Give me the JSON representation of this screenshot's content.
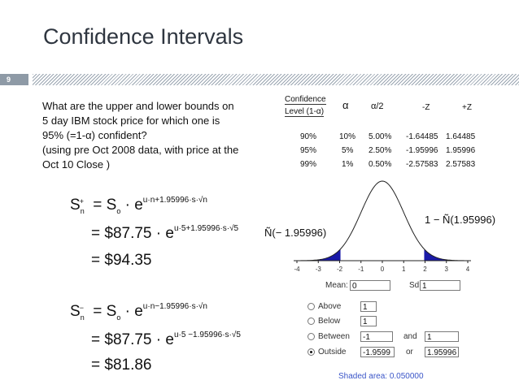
{
  "slide": {
    "title": "Confidence Intervals",
    "page_number": "9"
  },
  "question": {
    "lines": [
      "What are the upper and lower bounds on",
      "5 day IBM stock price for which one is",
      "95% (=1-α) confident?",
      "(using pre Oct 2008 data, with price at the",
      "Oct 10 Close )"
    ]
  },
  "table": {
    "header": {
      "level_line1": "Confidence",
      "level_line2": "Level (1-α)",
      "alpha": "α",
      "alpha_half": "α/2",
      "neg_z": "-Z",
      "pos_z": "+Z"
    },
    "rows": [
      [
        "90%",
        "10%",
        "5.00%",
        "-1.64485",
        "1.64485"
      ],
      [
        "95%",
        "5%",
        "2.50%",
        "-1.95996",
        "1.95996"
      ],
      [
        "99%",
        "1%",
        "0.50%",
        "-2.57583",
        "2.57583"
      ]
    ]
  },
  "upper": {
    "lhs": "S",
    "lhs_sub": "n",
    "lhs_sup": "+",
    "line1_mid": "= S",
    "line1_sub": "o",
    "line1_e": "· e",
    "line1_exp": "u·n+1.95996·s·√n",
    "line2_main": "= $87.75",
    "line2_e": "· e",
    "line2_exp": "u·5+1.95996·s·√5",
    "line3": "= $94.35"
  },
  "lower": {
    "lhs": "S",
    "lhs_sub": "n",
    "lhs_sup": "−",
    "line1_mid": "= S",
    "line1_sub": "o",
    "line1_e": "· e",
    "line1_exp": "u·n−1.95996·s·√n",
    "line2_main": "= $87.75",
    "line2_e": "· e",
    "line2_exp": "u·5 −1.95996·s·√5",
    "line3": "= $81.86"
  },
  "curve_labels": {
    "left": "Ñ(− 1.95996)",
    "right": "1 − Ñ(1.95996)"
  },
  "axis_ticks": [
    "-4",
    "-3",
    "-2",
    "-1",
    "0",
    "1",
    "2",
    "3",
    "4"
  ],
  "applet": {
    "mean_label": "Mean:",
    "mean_value": "0",
    "sd_label": "Sd",
    "sd_value": "1",
    "options": [
      {
        "label": "Above",
        "value": "1",
        "selected": false
      },
      {
        "label": "Below",
        "value": "1",
        "selected": false
      },
      {
        "label": "Between",
        "value": "-1",
        "selected": false
      },
      {
        "label": "Outside",
        "value": "-1.9599",
        "selected": true
      }
    ],
    "and_label": "and",
    "and_value": "1",
    "or_label": "or",
    "or_value": "1.95996",
    "shaded_area": "Shaded area: 0.050000"
  },
  "colors": {
    "tail_fill": "#1a1aa8",
    "title": "#2f3640",
    "shaded_text": "#3a55c8"
  }
}
